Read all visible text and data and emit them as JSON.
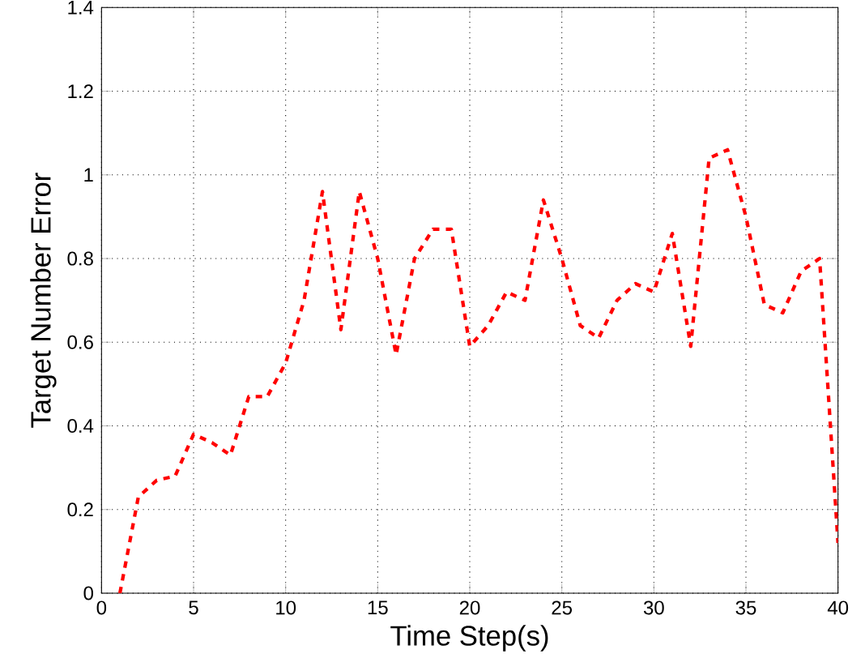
{
  "chart_data": {
    "type": "line",
    "xlabel": "Time Step(s)",
    "ylabel": "Target Number Error",
    "x": [
      1,
      2,
      3,
      4,
      5,
      6,
      7,
      8,
      9,
      10,
      11,
      12,
      13,
      14,
      15,
      16,
      17,
      18,
      19,
      20,
      21,
      22,
      23,
      24,
      25,
      26,
      27,
      28,
      29,
      30,
      31,
      32,
      33,
      34,
      35,
      36,
      37,
      38,
      39,
      40
    ],
    "series": [
      {
        "color": "#ff0000",
        "values": [
          0,
          0.23,
          0.27,
          0.28,
          0.38,
          0.36,
          0.33,
          0.47,
          0.47,
          0.55,
          0.7,
          0.96,
          0.63,
          0.96,
          0.8,
          0.57,
          0.8,
          0.87,
          0.87,
          0.59,
          0.64,
          0.72,
          0.7,
          0.94,
          0.8,
          0.64,
          0.61,
          0.7,
          0.74,
          0.72,
          0.86,
          0.59,
          1.04,
          1.06,
          0.9,
          0.69,
          0.67,
          0.77,
          0.8,
          0.12
        ]
      }
    ],
    "xlim": [
      0,
      40
    ],
    "ylim": [
      0,
      1.4
    ],
    "xticks": [
      0,
      5,
      10,
      15,
      20,
      25,
      30,
      35,
      40
    ],
    "yticks": [
      0,
      0.2,
      0.4,
      0.6,
      0.8,
      1,
      1.2,
      1.4
    ],
    "grid": true,
    "line_style": "dashed",
    "marker": "none"
  }
}
